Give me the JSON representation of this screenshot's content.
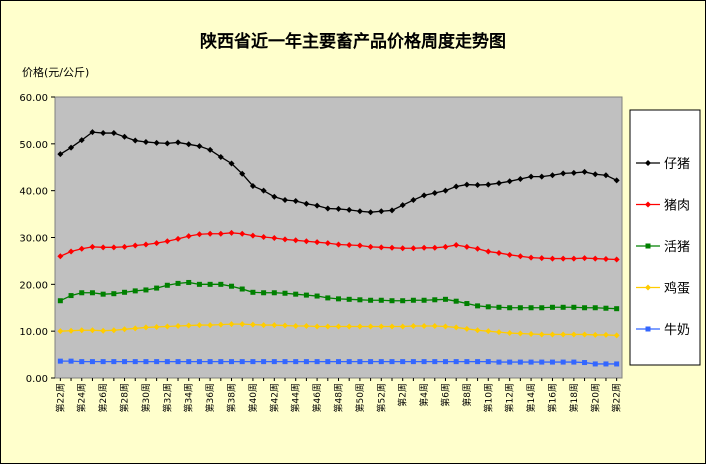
{
  "chart_data": {
    "type": "line",
    "title": "陕西省近一年主要畜产品价格周度走势图",
    "y_label": "价格(元/公斤)",
    "categories": [
      "第22周",
      null,
      "第24周",
      null,
      "第26周",
      null,
      "第28周",
      null,
      "第30周",
      null,
      "第32周",
      null,
      "第34周",
      null,
      "第36周",
      null,
      "第38周",
      null,
      "第40周",
      null,
      "第42周",
      null,
      "第44周",
      null,
      "第46周",
      null,
      "第48周",
      null,
      "第50周",
      null,
      "第52周",
      null,
      "第2周",
      null,
      "第4周",
      null,
      "第6周",
      null,
      "第8周",
      null,
      "第10周",
      null,
      "第12周",
      null,
      "第14周",
      null,
      "第16周",
      null,
      "第18周",
      null,
      "第20周",
      null,
      "第22周"
    ],
    "ylim": [
      0,
      60
    ],
    "yticks": [
      {
        "value": 0,
        "label": "0.00"
      },
      {
        "value": 10,
        "label": "10.00"
      },
      {
        "value": 20,
        "label": "20.00"
      },
      {
        "value": 30,
        "label": "30.00"
      },
      {
        "value": 40,
        "label": "40.00"
      },
      {
        "value": 50,
        "label": "50.00"
      },
      {
        "value": 60,
        "label": "60.00"
      }
    ],
    "grid": false,
    "legend": "right",
    "series": [
      {
        "name": "仔猪",
        "color": "#000000",
        "marker": "diamond",
        "values": [
          47.8,
          49.2,
          50.8,
          52.5,
          52.3,
          52.3,
          51.5,
          50.7,
          50.4,
          50.2,
          50.1,
          50.3,
          49.9,
          49.5,
          48.7,
          47.2,
          45.8,
          43.6,
          41.0,
          40.0,
          38.7,
          38.0,
          37.8,
          37.2,
          36.8,
          36.2,
          36.1,
          35.9,
          35.6,
          35.4,
          35.6,
          35.8,
          36.9,
          38.0,
          39.0,
          39.5,
          40.0,
          40.9,
          41.3,
          41.2,
          41.3,
          41.6,
          42.0,
          42.5,
          43.0,
          43.0,
          43.3,
          43.7,
          43.8,
          44.0,
          43.5,
          43.3,
          42.2
        ]
      },
      {
        "name": "猪肉",
        "color": "#ff0000",
        "marker": "diamond",
        "values": [
          26,
          27,
          27.6,
          28,
          27.9,
          27.9,
          28,
          28.3,
          28.5,
          28.8,
          29.2,
          29.7,
          30.3,
          30.7,
          30.8,
          30.8,
          31,
          30.8,
          30.4,
          30.1,
          29.9,
          29.6,
          29.4,
          29.2,
          29,
          28.8,
          28.5,
          28.4,
          28.3,
          28,
          27.9,
          27.8,
          27.7,
          27.7,
          27.8,
          27.8,
          28,
          28.4,
          28,
          27.6,
          27,
          26.7,
          26.3,
          26,
          25.7,
          25.6,
          25.5,
          25.5,
          25.5,
          25.6,
          25.5,
          25.4,
          25.3
        ]
      },
      {
        "name": "活猪",
        "color": "#008000",
        "marker": "square",
        "values": [
          16.5,
          17.6,
          18.2,
          18.2,
          17.9,
          18,
          18.3,
          18.6,
          18.8,
          19.2,
          19.8,
          20.2,
          20.4,
          20,
          20,
          20,
          19.6,
          19,
          18.3,
          18.2,
          18.2,
          18.1,
          17.9,
          17.7,
          17.5,
          17.1,
          16.9,
          16.8,
          16.7,
          16.6,
          16.6,
          16.5,
          16.5,
          16.6,
          16.6,
          16.7,
          16.8,
          16.4,
          15.9,
          15.4,
          15.2,
          15.1,
          15,
          15,
          15,
          15,
          15.1,
          15.1,
          15.1,
          15,
          15,
          14.9,
          14.8
        ]
      },
      {
        "name": "鸡蛋",
        "color": "#ffcc00",
        "marker": "diamond",
        "values": [
          10,
          10.1,
          10.2,
          10.2,
          10.1,
          10.2,
          10.4,
          10.6,
          10.8,
          10.9,
          11,
          11.1,
          11.2,
          11.3,
          11.3,
          11.4,
          11.5,
          11.5,
          11.4,
          11.3,
          11.3,
          11.2,
          11.1,
          11.1,
          11,
          11,
          11,
          11,
          11,
          11,
          11,
          11,
          11,
          11.1,
          11.1,
          11.1,
          11,
          10.8,
          10.5,
          10.2,
          10,
          9.8,
          9.6,
          9.5,
          9.4,
          9.3,
          9.3,
          9.3,
          9.3,
          9.3,
          9.2,
          9.2,
          9.1
        ]
      },
      {
        "name": "牛奶",
        "color": "#3366ff",
        "marker": "square",
        "values": [
          3.6,
          3.6,
          3.5,
          3.5,
          3.5,
          3.5,
          3.5,
          3.5,
          3.5,
          3.5,
          3.5,
          3.5,
          3.5,
          3.5,
          3.5,
          3.5,
          3.5,
          3.5,
          3.5,
          3.5,
          3.5,
          3.5,
          3.5,
          3.5,
          3.5,
          3.5,
          3.5,
          3.5,
          3.5,
          3.5,
          3.5,
          3.5,
          3.5,
          3.5,
          3.5,
          3.5,
          3.5,
          3.5,
          3.5,
          3.5,
          3.5,
          3.4,
          3.4,
          3.4,
          3.4,
          3.4,
          3.4,
          3.4,
          3.4,
          3.3,
          3.0,
          3.0,
          3.0
        ]
      }
    ]
  }
}
